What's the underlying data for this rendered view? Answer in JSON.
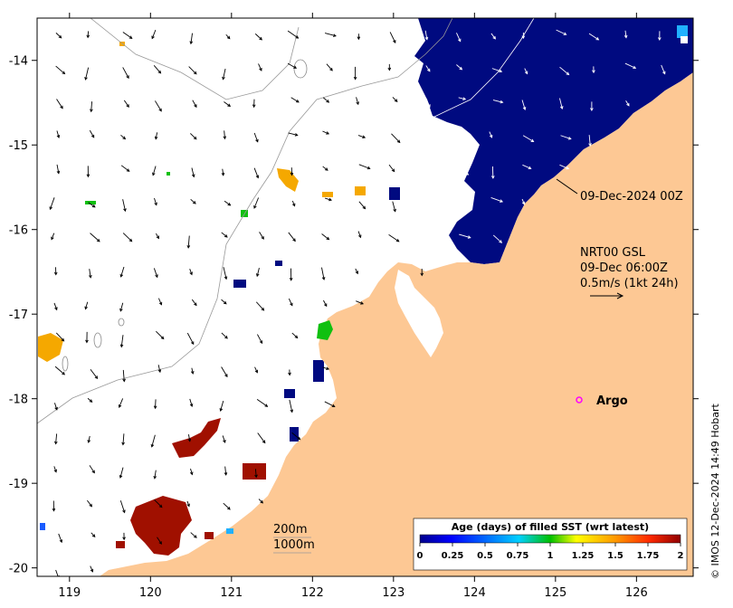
{
  "axes": {
    "x_ticks": [
      "119",
      "120",
      "121",
      "122",
      "123",
      "124",
      "125",
      "126"
    ],
    "y_ticks": [
      "-14",
      "-15",
      "-16",
      "-17",
      "-18",
      "-19",
      "-20"
    ]
  },
  "annotations": {
    "sst_time": "09-Dec-2024 00Z",
    "current_source": "NRT00 GSL",
    "current_time": "09-Dec 06:00Z",
    "current_scale": "0.5m/s (1kt 24h)",
    "argo_label": "Argo",
    "contour_200": "200m",
    "contour_1000": "1000m"
  },
  "colorbar": {
    "title": "Age (days) of filled SST (wrt latest)",
    "ticks": [
      "0",
      "0.25",
      "0.5",
      "0.75",
      "1",
      "1.25",
      "1.5",
      "1.75",
      "2"
    ]
  },
  "credit": "© IMOS 12-Dec-2024 14:49 Hobart",
  "colors": {
    "land": "#fdc894",
    "recent_sst": "#000a80",
    "argo_marker": "#ff00ff",
    "old_sst": "#a01000",
    "mid_sst": "#f5a800"
  },
  "chart_data": {
    "type": "map",
    "lon_range": [
      118.6,
      126.7
    ],
    "lat_range": [
      -20.1,
      -13.5
    ],
    "colorbar_range": [
      0,
      2
    ],
    "argo_float": {
      "lon": 125.3,
      "lat": -18.0
    }
  }
}
